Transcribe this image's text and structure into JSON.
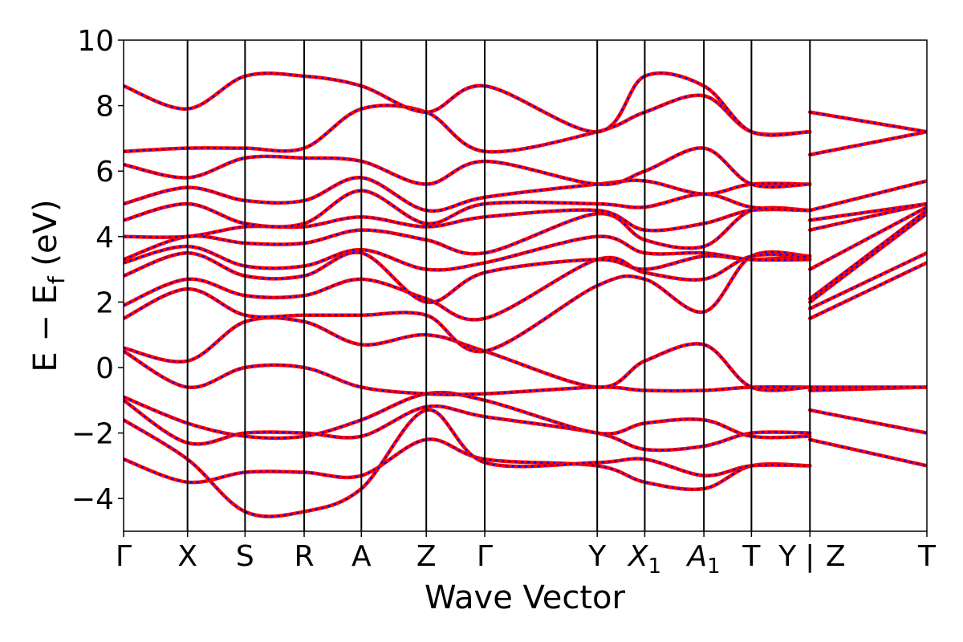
{
  "chart_data": {
    "type": "line",
    "title": "",
    "xlabel": "Wave Vector",
    "ylabel": "E − E",
    "ylabel_sub": "f",
    "ylabel_unit": " (eV)",
    "ylim": [
      -5,
      10
    ],
    "xlim": [
      0,
      12.5
    ],
    "yticks": [
      -4,
      -2,
      0,
      2,
      4,
      6,
      8,
      10
    ],
    "ytick_labels": [
      "−4",
      "−2",
      "0",
      "2",
      "4",
      "6",
      "8",
      "10"
    ],
    "grid": false,
    "colors": {
      "band_main": "#ff0000",
      "band_dash": "#0000ff",
      "divider": "#000000"
    },
    "kpoints": [
      {
        "x": 0.0,
        "label": "Γ"
      },
      {
        "x": 0.995,
        "label": "X"
      },
      {
        "x": 1.89,
        "label": "S"
      },
      {
        "x": 2.81,
        "label": "R"
      },
      {
        "x": 3.7,
        "label": "A"
      },
      {
        "x": 4.71,
        "label": "Z"
      },
      {
        "x": 5.62,
        "label": "Γ"
      },
      {
        "x": 7.37,
        "label": "Y"
      },
      {
        "x": 8.11,
        "label": "X",
        "sub": "1"
      },
      {
        "x": 9.03,
        "label": "A",
        "sub": "1"
      },
      {
        "x": 9.77,
        "label": "T"
      },
      {
        "x": 10.68,
        "label": "Y"
      },
      {
        "x": 10.68,
        "label": "|"
      },
      {
        "x": 10.68,
        "label": "Z"
      },
      {
        "x": 12.5,
        "label": "T"
      }
    ],
    "segments": [
      {
        "name": "",
        "x": [
          0,
          0.995,
          1.89,
          2.81,
          3.7,
          4.71,
          5.62,
          7.37,
          8.11,
          9.03,
          9.77,
          10.68
        ],
        "bands": [
          [
            -2.8,
            -3.5,
            -3.2,
            -3.2,
            -3.3,
            -2.2,
            -2.8,
            -3.0,
            -3.5,
            -3.7,
            -3.0,
            -3.0
          ],
          [
            -1.6,
            -2.8,
            -4.4,
            -4.4,
            -3.7,
            -1.3,
            -2.9,
            -2.9,
            -2.8,
            -3.3,
            -3.0,
            -3.0
          ],
          [
            -1.0,
            -2.3,
            -2.0,
            -2.0,
            -2.1,
            -1.2,
            -1.5,
            -2.0,
            -2.5,
            -2.4,
            -2.0,
            -2.0
          ],
          [
            -0.9,
            -1.7,
            -2.1,
            -2.1,
            -1.6,
            -0.8,
            -1.0,
            -2.0,
            -1.7,
            -1.6,
            -2.1,
            -2.1
          ],
          [
            0.5,
            -0.6,
            0.0,
            0.0,
            -0.6,
            -0.8,
            -0.8,
            -0.6,
            -0.7,
            -0.7,
            -0.6,
            -0.6
          ],
          [
            0.6,
            0.2,
            1.4,
            1.4,
            0.7,
            1.0,
            0.5,
            -0.6,
            0.2,
            0.7,
            -0.6,
            -0.6
          ],
          [
            1.5,
            2.4,
            1.6,
            1.6,
            1.6,
            1.6,
            0.5,
            2.5,
            2.7,
            1.7,
            3.4,
            3.4
          ],
          [
            1.9,
            2.7,
            2.2,
            2.2,
            2.7,
            2.1,
            1.5,
            3.3,
            2.9,
            2.7,
            3.4,
            3.4
          ],
          [
            2.8,
            3.5,
            2.8,
            2.8,
            3.5,
            2.0,
            2.9,
            3.3,
            3.0,
            3.4,
            3.3,
            3.4
          ],
          [
            3.2,
            3.7,
            3.1,
            3.1,
            3.6,
            3.0,
            3.2,
            4.0,
            3.5,
            3.5,
            3.3,
            3.3
          ],
          [
            3.3,
            4.0,
            3.8,
            3.8,
            4.2,
            3.9,
            3.5,
            4.7,
            3.9,
            3.7,
            4.8,
            4.8
          ],
          [
            4.0,
            4.0,
            4.3,
            4.3,
            4.6,
            4.3,
            4.6,
            4.8,
            4.2,
            4.4,
            4.8,
            4.8
          ],
          [
            4.5,
            5.0,
            4.4,
            4.4,
            5.4,
            4.4,
            5.0,
            5.0,
            4.9,
            5.3,
            4.9,
            4.8
          ],
          [
            5.0,
            5.5,
            5.1,
            5.1,
            5.8,
            4.8,
            5.2,
            5.6,
            5.7,
            5.3,
            5.6,
            5.6
          ],
          [
            6.2,
            5.8,
            6.4,
            6.4,
            6.3,
            5.6,
            6.3,
            5.6,
            6.0,
            6.7,
            5.6,
            5.6
          ],
          [
            6.6,
            6.7,
            6.7,
            6.7,
            7.9,
            7.8,
            6.6,
            7.2,
            7.8,
            8.3,
            7.2,
            7.2
          ],
          [
            8.6,
            7.9,
            8.9,
            8.9,
            8.6,
            7.8,
            8.6,
            7.2,
            8.9,
            8.6,
            7.2,
            7.2
          ]
        ]
      },
      {
        "name": "",
        "x": [
          10.68,
          12.5
        ],
        "bands": [
          [
            -2.2,
            -3.0
          ],
          [
            -1.3,
            -2.0
          ],
          [
            -0.7,
            -0.6
          ],
          [
            -0.6,
            -0.6
          ],
          [
            1.5,
            3.2
          ],
          [
            1.8,
            3.5
          ],
          [
            2.0,
            4.7
          ],
          [
            2.1,
            4.8
          ],
          [
            3.0,
            4.9
          ],
          [
            4.2,
            5.0
          ],
          [
            4.5,
            5.0
          ],
          [
            4.8,
            5.7
          ],
          [
            6.5,
            7.2
          ],
          [
            7.8,
            7.2
          ]
        ]
      }
    ]
  }
}
